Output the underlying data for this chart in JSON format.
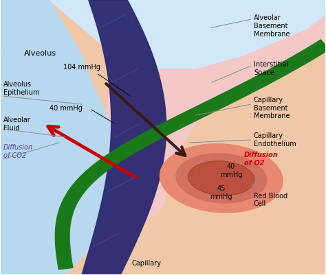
{
  "alveolus_color": "#b8d8f0",
  "alveolus_color2": "#d0e8f8",
  "membrane_color": "#2a2870",
  "membrane_highlight": "#4040a0",
  "interstitial_color": "#f5c8c8",
  "capillary_bg_color": "#f0c8a8",
  "green_line_color": "#1a7a1a",
  "rbc_color_outer": "#e88870",
  "rbc_color_mid": "#d07060",
  "rbc_color_inner": "#bc5040",
  "rbc_outline": "#a04030",
  "arrow_co2_color": "#cc0000",
  "arrow_o2_color": "#3a1a10",
  "label_color": "#000000",
  "co2_label_color": "#4444aa",
  "o2_label_color": "#cc0000",
  "line_color": "#888888",
  "font_size": 7.5,
  "font_size_small": 7,
  "labels": {
    "alveolus": "Alveolus",
    "alveolus_epithelium": "Alveolus\nEpithelium",
    "alveolar_fluid": "Alveolar\nFluid",
    "interstitial_space": "Interstitial\nSpace",
    "alveolar_basement": "Alveolar\nBasement\nMembrane",
    "capillary_basement": "Capillary\nBasement\nMembrane",
    "capillary_endothelium": "Capillary\nEndothelium",
    "capillary": "Capillary",
    "red_blood_cell": "Red Blood\nCell",
    "diffusion_co2": "Diffusion\nof CO2",
    "diffusion_o2": "Diffusion\nof O2",
    "pressure_104": "104 mmHg",
    "pressure_40": "40 mmHg",
    "pressure_40_rbc": "40\nmmHg",
    "pressure_45_rbc": "45\nmmHg"
  }
}
